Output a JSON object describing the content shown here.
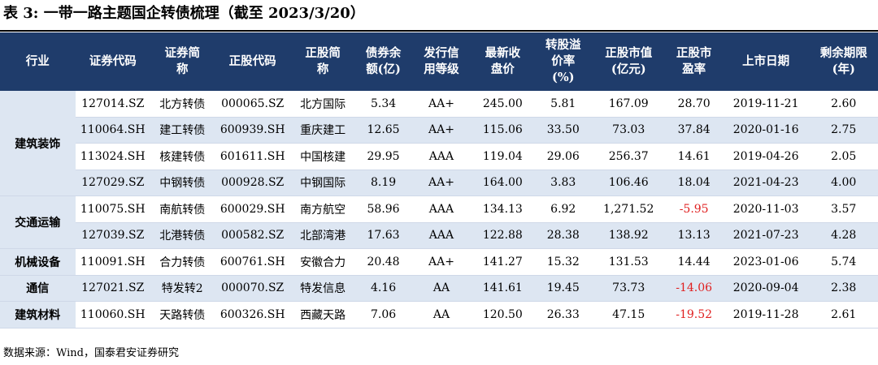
{
  "title": "表 3:  一带一路主题国企转债梳理（截至 2023/3/20）",
  "headers": [
    "行业",
    "证券代码",
    "证券简\n称",
    "正股代码",
    "正股简\n称",
    "债券余\n额(亿)",
    "发行信\n用等级",
    "最新收\n盘价",
    "转股溢\n价率\n(%)",
    "正股市值\n(亿元)",
    "正股市\n盈率",
    "上市日期",
    "剩余期限\n(年)"
  ],
  "groups": [
    {
      "industry": "建筑装饰",
      "rows": [
        [
          "127014.SZ",
          "北方转债",
          "000065.SZ",
          "北方国际",
          "5.34",
          "AA+",
          "245.00",
          "5.81",
          "167.09",
          "28.70",
          "2019-11-21",
          "2.60"
        ],
        [
          "110064.SH",
          "建工转债",
          "600939.SH",
          "重庆建工",
          "12.65",
          "AA+",
          "115.06",
          "33.50",
          "73.03",
          "37.84",
          "2020-01-16",
          "2.75"
        ],
        [
          "113024.SH",
          "核建转债",
          "601611.SH",
          "中国核建",
          "29.95",
          "AAA",
          "119.04",
          "29.06",
          "256.37",
          "14.61",
          "2019-04-26",
          "2.05"
        ],
        [
          "127029.SZ",
          "中钢转债",
          "000928.SZ",
          "中钢国际",
          "8.19",
          "AA+",
          "164.00",
          "3.83",
          "106.46",
          "18.04",
          "2021-04-23",
          "4.00"
        ]
      ]
    },
    {
      "industry": "交通运输",
      "rows": [
        [
          "110075.SH",
          "南航转债",
          "600029.SH",
          "南方航空",
          "58.96",
          "AAA",
          "134.13",
          "6.92",
          "1,271.52",
          "-5.95",
          "2020-11-03",
          "3.57"
        ],
        [
          "127039.SZ",
          "北港转债",
          "000582.SZ",
          "北部湾港",
          "17.63",
          "AAA",
          "122.88",
          "28.38",
          "138.92",
          "13.13",
          "2021-07-23",
          "4.28"
        ]
      ]
    },
    {
      "industry": "机械设备",
      "rows": [
        [
          "110091.SH",
          "合力转债",
          "600761.SH",
          "安徽合力",
          "20.48",
          "AA+",
          "141.27",
          "15.32",
          "131.53",
          "14.44",
          "2023-01-06",
          "5.74"
        ]
      ]
    },
    {
      "industry": "通信",
      "rows": [
        [
          "127021.SZ",
          "特发转2",
          "000070.SZ",
          "特发信息",
          "4.16",
          "AA",
          "141.61",
          "19.45",
          "73.73",
          "-14.06",
          "2020-09-04",
          "2.38"
        ]
      ]
    },
    {
      "industry": "建筑材料",
      "rows": [
        [
          "110060.SH",
          "天路转债",
          "600326.SH",
          "西藏天路",
          "7.06",
          "AA",
          "120.50",
          "26.33",
          "47.15",
          "-19.52",
          "2019-11-28",
          "2.61"
        ]
      ]
    }
  ],
  "source": "数据来源：Wind，国泰君安证券研究",
  "colors": {
    "header_bg": "#1f3c6b",
    "stripe": "#dde6f2",
    "negative": "#e02020"
  }
}
